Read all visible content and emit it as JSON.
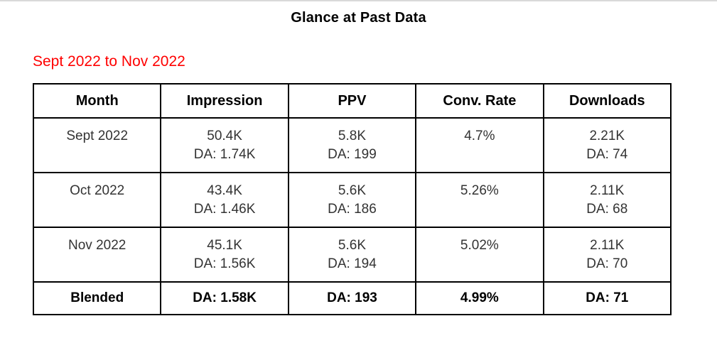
{
  "page": {
    "title": "Glance at Past Data",
    "subtitle": "Sept 2022 to Nov 2022"
  },
  "colors": {
    "background": "#ffffff",
    "subtitle_red": "#ff0000",
    "table_border": "#000000",
    "body_text": "#333333",
    "header_text": "#000000",
    "top_divider": "#d9d9d9"
  },
  "table": {
    "columns": [
      "Month",
      "Impression",
      "PPV",
      "Conv. Rate",
      "Downloads"
    ],
    "rows": [
      {
        "month": "Sept 2022",
        "impression": [
          "50.4K",
          "DA: 1.74K"
        ],
        "ppv": [
          "5.8K",
          "DA: 199"
        ],
        "conv_rate": "4.7%",
        "downloads": [
          "2.21K",
          "DA: 74"
        ]
      },
      {
        "month": "Oct 2022",
        "impression": [
          "43.4K",
          "DA: 1.46K"
        ],
        "ppv": [
          "5.6K",
          "DA: 186"
        ],
        "conv_rate": "5.26%",
        "downloads": [
          "2.11K",
          "DA: 68"
        ]
      },
      {
        "month": "Nov 2022",
        "impression": [
          "45.1K",
          "DA: 1.56K"
        ],
        "ppv": [
          "5.6K",
          "DA: 194"
        ],
        "conv_rate": "5.02%",
        "downloads": [
          "2.11K",
          "DA: 70"
        ]
      }
    ],
    "summary_row": {
      "label": "Blended",
      "impression": "DA: 1.58K",
      "ppv": "DA: 193",
      "conv_rate": "4.99%",
      "downloads": "DA: 71"
    }
  },
  "chart_data": {
    "type": "table",
    "title": "Glance at Past Data",
    "subtitle": "Sept 2022 to Nov 2022",
    "columns": [
      "Month",
      "Impression",
      "PPV",
      "Conv. Rate",
      "Downloads"
    ],
    "rows": [
      [
        "Sept 2022",
        "50.4K | DA: 1.74K",
        "5.8K | DA: 199",
        "4.7%",
        "2.21K | DA: 74"
      ],
      [
        "Oct 2022",
        "43.4K | DA: 1.46K",
        "5.6K | DA: 186",
        "5.26%",
        "2.11K | DA: 68"
      ],
      [
        "Nov 2022",
        "45.1K | DA: 1.56K",
        "5.6K | DA: 194",
        "5.02%",
        "2.11K | DA: 70"
      ],
      [
        "Blended",
        "DA: 1.58K",
        "DA: 193",
        "4.99%",
        "DA: 71"
      ]
    ]
  }
}
